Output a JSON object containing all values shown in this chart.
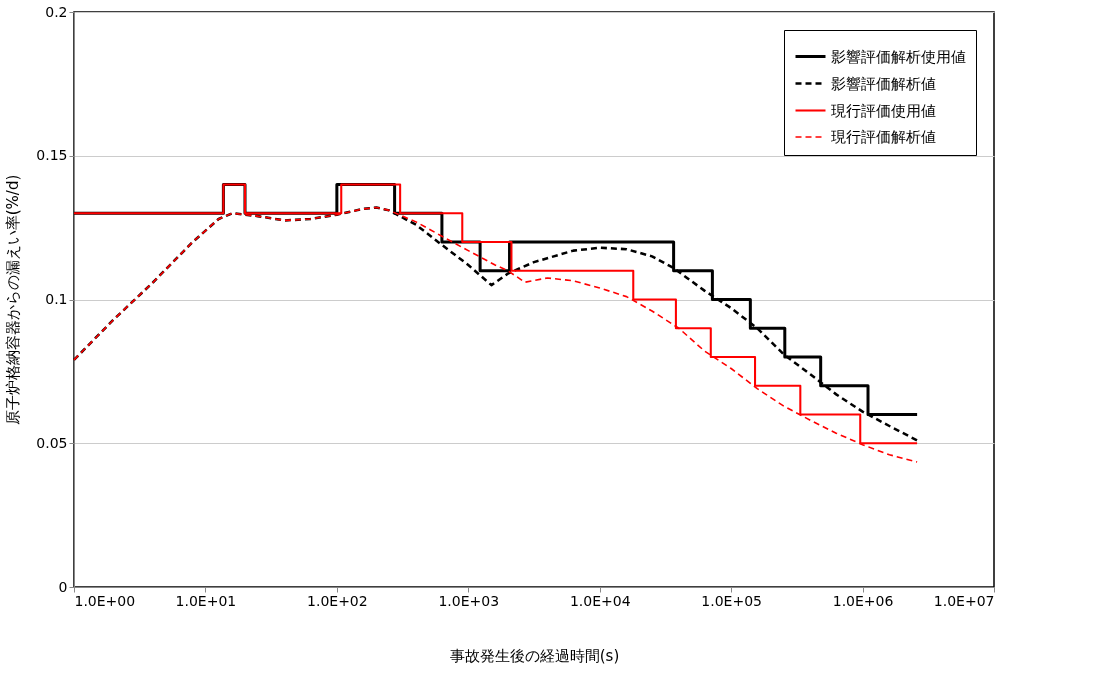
{
  "chart_data": {
    "type": "line",
    "xlabel": "事故発生後の経過時間(s)",
    "ylabel": "原子炉格納容器からの漏えい率(%/d)",
    "log": "x",
    "xlim": [
      1,
      10000000
    ],
    "xticks": [
      {
        "value": 1,
        "label": "1.0E+00"
      },
      {
        "value": 10,
        "label": "1.0E+01"
      },
      {
        "value": 100,
        "label": "1.0E+02"
      },
      {
        "value": 1000,
        "label": "1.0E+03"
      },
      {
        "value": 10000,
        "label": "1.0E+04"
      },
      {
        "value": 100000,
        "label": "1.0E+05"
      },
      {
        "value": 1000000,
        "label": "1.0E+06"
      },
      {
        "value": 10000000,
        "label": "1.0E+07"
      }
    ],
    "ylim": [
      0,
      0.2
    ],
    "yticks": [
      0,
      0.05,
      0.1,
      0.15,
      0.2
    ],
    "grid": "y",
    "legend": "top right",
    "series": [
      {
        "name": "影響評価解析使用値",
        "type": "step",
        "color": "#000000",
        "line_style": "solid",
        "x": [
          1,
          13.7,
          20,
          100,
          275,
          630,
          1230,
          2060,
          36500,
          72000,
          140000,
          256000,
          480000,
          1100000,
          2600000
        ],
        "values": [
          0.13,
          0.14,
          0.13,
          0.14,
          0.13,
          0.12,
          0.11,
          0.12,
          0.11,
          0.1,
          0.09,
          0.08,
          0.07,
          0.06,
          0.06
        ]
      },
      {
        "name": "影響評価解析値",
        "color": "#000000",
        "line_style": "dashed",
        "x": [
          1,
          2,
          4,
          8,
          12.6,
          16,
          25,
          40,
          63,
          100,
          158,
          200,
          250,
          400,
          630,
          1000,
          1500,
          2000,
          3160,
          6300,
          10000,
          16000,
          25000,
          36300,
          63000,
          100000,
          158000,
          250000,
          400000,
          630000,
          1000000,
          1600000,
          2600000
        ],
        "values": [
          0.079,
          0.093,
          0.106,
          0.12,
          0.128,
          0.13,
          0.129,
          0.1275,
          0.128,
          0.1295,
          0.1315,
          0.132,
          0.131,
          0.126,
          0.119,
          0.112,
          0.105,
          0.109,
          0.113,
          0.117,
          0.118,
          0.1175,
          0.115,
          0.111,
          0.103,
          0.097,
          0.09,
          0.081,
          0.074,
          0.067,
          0.061,
          0.056,
          0.051
        ]
      },
      {
        "name": "現行評価使用値",
        "type": "step",
        "color": "#ff0000",
        "line_style": "solid",
        "x": [
          1,
          13.7,
          20,
          108,
          303,
          900,
          2130,
          18000,
          38000,
          70000,
          152000,
          336000,
          960000,
          2600000
        ],
        "values": [
          0.13,
          0.14,
          0.13,
          0.14,
          0.13,
          0.12,
          0.11,
          0.1,
          0.09,
          0.08,
          0.07,
          0.06,
          0.05,
          0.05
        ]
      },
      {
        "name": "現行評価解析値",
        "color": "#ff0000",
        "line_style": "dashed",
        "x": [
          1,
          2,
          4,
          8,
          12.6,
          16,
          25,
          40,
          63,
          100,
          158,
          200,
          250,
          400,
          630,
          1000,
          1600,
          2000,
          2700,
          4000,
          6300,
          10000,
          16000,
          25000,
          40000,
          63000,
          100000,
          158000,
          250000,
          400000,
          630000,
          1000000,
          1600000,
          2600000
        ],
        "values": [
          0.079,
          0.093,
          0.106,
          0.12,
          0.128,
          0.13,
          0.129,
          0.1275,
          0.128,
          0.1295,
          0.1315,
          0.132,
          0.131,
          0.127,
          0.122,
          0.117,
          0.112,
          0.11,
          0.106,
          0.1075,
          0.1065,
          0.104,
          0.101,
          0.096,
          0.09,
          0.082,
          0.076,
          0.069,
          0.063,
          0.058,
          0.0535,
          0.0495,
          0.046,
          0.0435
        ]
      }
    ]
  }
}
